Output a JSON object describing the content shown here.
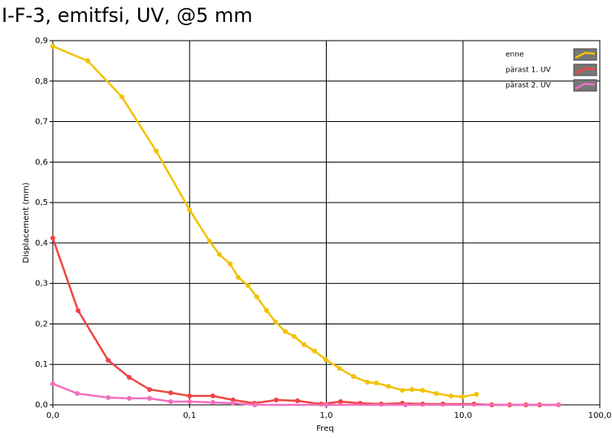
{
  "chart_data": {
    "type": "line",
    "title": "I-F-3, emitfsi, UV, @5 mm",
    "x_label": "Freq",
    "y_label": "Displacement (mm)",
    "xscale": "log",
    "grid": true,
    "legend": "upper right",
    "xlim": [
      0.01,
      100
    ],
    "xticks": [
      {
        "value": 0.01,
        "label": "0,0"
      },
      {
        "value": 0.1,
        "label": "0,1"
      },
      {
        "value": 1,
        "label": "1,0"
      },
      {
        "value": 10,
        "label": "10,0"
      },
      {
        "value": 100,
        "label": "100,0"
      }
    ],
    "ylim": [
      0,
      0.9
    ],
    "yticks": [
      {
        "value": 0,
        "label": "0,0"
      },
      {
        "value": 0.1,
        "label": "0,1"
      },
      {
        "value": 0.2,
        "label": "0,2"
      },
      {
        "value": 0.3,
        "label": "0,3"
      },
      {
        "value": 0.4,
        "label": "0,4"
      },
      {
        "value": 0.5,
        "label": "0,5"
      },
      {
        "value": 0.6,
        "label": "0,6"
      },
      {
        "value": 0.7,
        "label": "0,7"
      },
      {
        "value": 0.8,
        "label": "0,8"
      },
      {
        "value": 0.9,
        "label": "0,9"
      }
    ],
    "series": [
      {
        "name": "enne",
        "color": "#f2c200",
        "x": [
          0.01,
          0.018,
          0.032,
          0.057,
          0.1,
          0.14,
          0.165,
          0.198,
          0.227,
          0.267,
          0.31,
          0.366,
          0.425,
          0.501,
          0.582,
          0.687,
          0.82,
          0.99,
          1.25,
          1.58,
          2.0,
          2.32,
          2.85,
          3.6,
          4.24,
          5.06,
          6.38,
          8.17,
          9.9,
          12.5
        ],
        "values": [
          0.886,
          0.85,
          0.761,
          0.627,
          0.482,
          0.404,
          0.372,
          0.348,
          0.315,
          0.295,
          0.267,
          0.233,
          0.205,
          0.181,
          0.169,
          0.149,
          0.133,
          0.112,
          0.09,
          0.07,
          0.056,
          0.054,
          0.046,
          0.036,
          0.038,
          0.036,
          0.028,
          0.022,
          0.02,
          0.026
        ]
      },
      {
        "name": "pärast 1. UV",
        "color": "#f04545",
        "x": [
          0.01,
          0.0153,
          0.0254,
          0.0362,
          0.051,
          0.0728,
          0.1,
          0.148,
          0.208,
          0.298,
          0.43,
          0.615,
          0.915,
          1.27,
          1.77,
          2.52,
          3.6,
          5.06,
          7.13,
          12.0,
          16.2,
          21.9,
          28.8,
          36.3,
          49.8
        ],
        "values": [
          0.412,
          0.233,
          0.11,
          0.068,
          0.038,
          0.03,
          0.022,
          0.022,
          0.012,
          0.004,
          0.012,
          0.01,
          0.002,
          0.008,
          0.004,
          0.002,
          0.004,
          0.002,
          0.002,
          0.002,
          0,
          0,
          0,
          0,
          0
        ]
      },
      {
        "name": "pärast 2. UV",
        "color": "#f070c0",
        "x": [
          0.01,
          0.0151,
          0.0254,
          0.0362,
          0.051,
          0.0728,
          0.1,
          0.148,
          0.208,
          0.3,
          1,
          3.8,
          50
        ],
        "values": [
          0.052,
          0.028,
          0.018,
          0.016,
          0.016,
          0.008,
          0.008,
          0.006,
          0.004,
          0,
          0,
          0,
          0
        ]
      }
    ]
  }
}
